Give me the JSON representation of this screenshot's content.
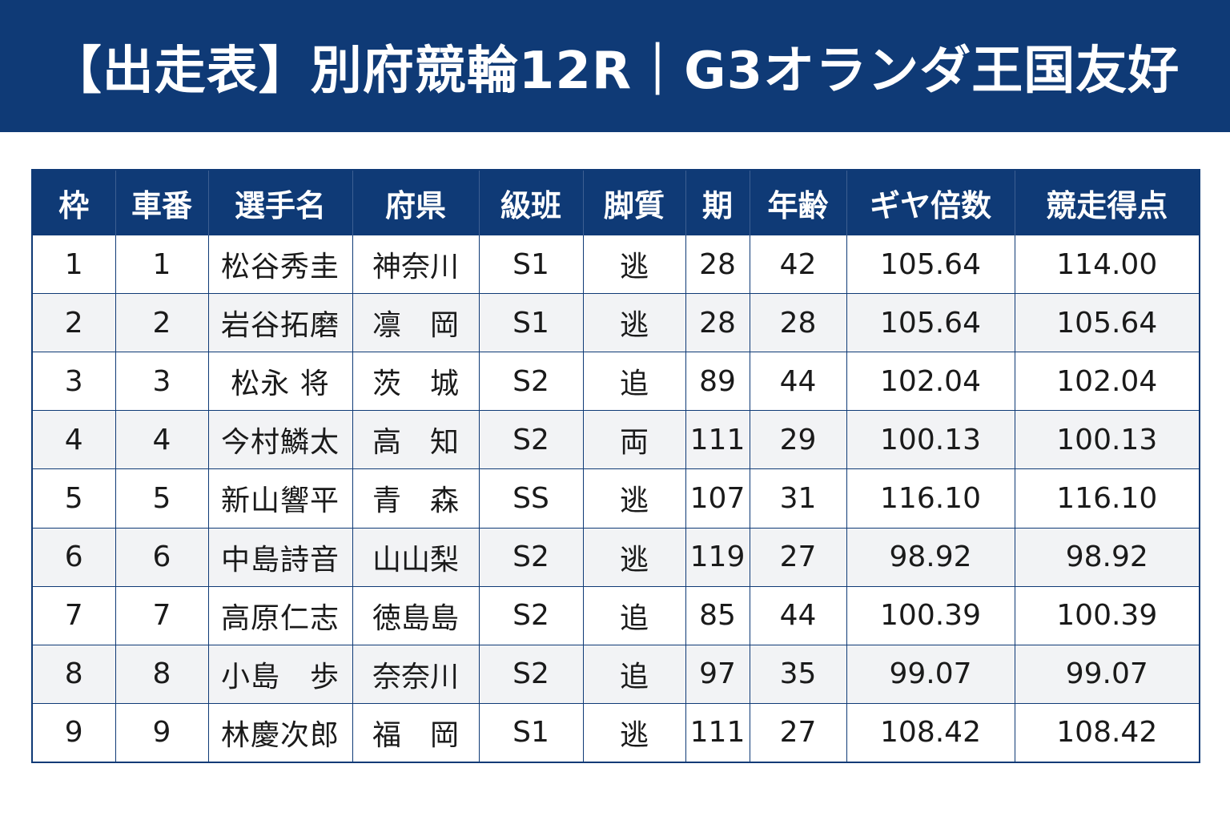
{
  "title": "【出走表】別府競輪12R｜G3オランダ王国友好",
  "columns": [
    "枠",
    "車番",
    "選手名",
    "府県",
    "級班",
    "脚質",
    "期",
    "年齢",
    "ギヤ倍数",
    "競走得点"
  ],
  "rows": [
    [
      "1",
      "1",
      "松谷秀圭",
      "神奈川",
      "S1",
      "逃",
      "28",
      "42",
      "105.64",
      "114.00"
    ],
    [
      "2",
      "2",
      "岩谷拓磨",
      "凛　岡",
      "S1",
      "逃",
      "28",
      "28",
      "105.64",
      "105.64"
    ],
    [
      "3",
      "3",
      "松永 将",
      "茨　城",
      "S2",
      "追",
      "89",
      "44",
      "102.04",
      "102.04"
    ],
    [
      "4",
      "4",
      "今村鱗太",
      "高　知",
      "S2",
      "両",
      "111",
      "29",
      "100.13",
      "100.13"
    ],
    [
      "5",
      "5",
      "新山響平",
      "青　森",
      "SS",
      "逃",
      "107",
      "31",
      "116.10",
      "116.10"
    ],
    [
      "6",
      "6",
      "中島詩音",
      "山山梨",
      "S2",
      "逃",
      "119",
      "27",
      "98.92",
      "98.92"
    ],
    [
      "7",
      "7",
      "高原仁志",
      "徳島島",
      "S2",
      "追",
      "85",
      "44",
      "100.39",
      "100.39"
    ],
    [
      "8",
      "8",
      "小島　歩",
      "奈奈川",
      "S2",
      "追",
      "97",
      "35",
      "99.07",
      "99.07"
    ],
    [
      "9",
      "9",
      "林慶次郎",
      "福　岡",
      "S1",
      "逃",
      "111",
      "27",
      "108.42",
      "108.42"
    ]
  ],
  "colors": {
    "header_bg": "#0f3a76",
    "header_text": "#ffffff",
    "row_alt": "#f2f3f5",
    "border": "#0f3a76"
  }
}
